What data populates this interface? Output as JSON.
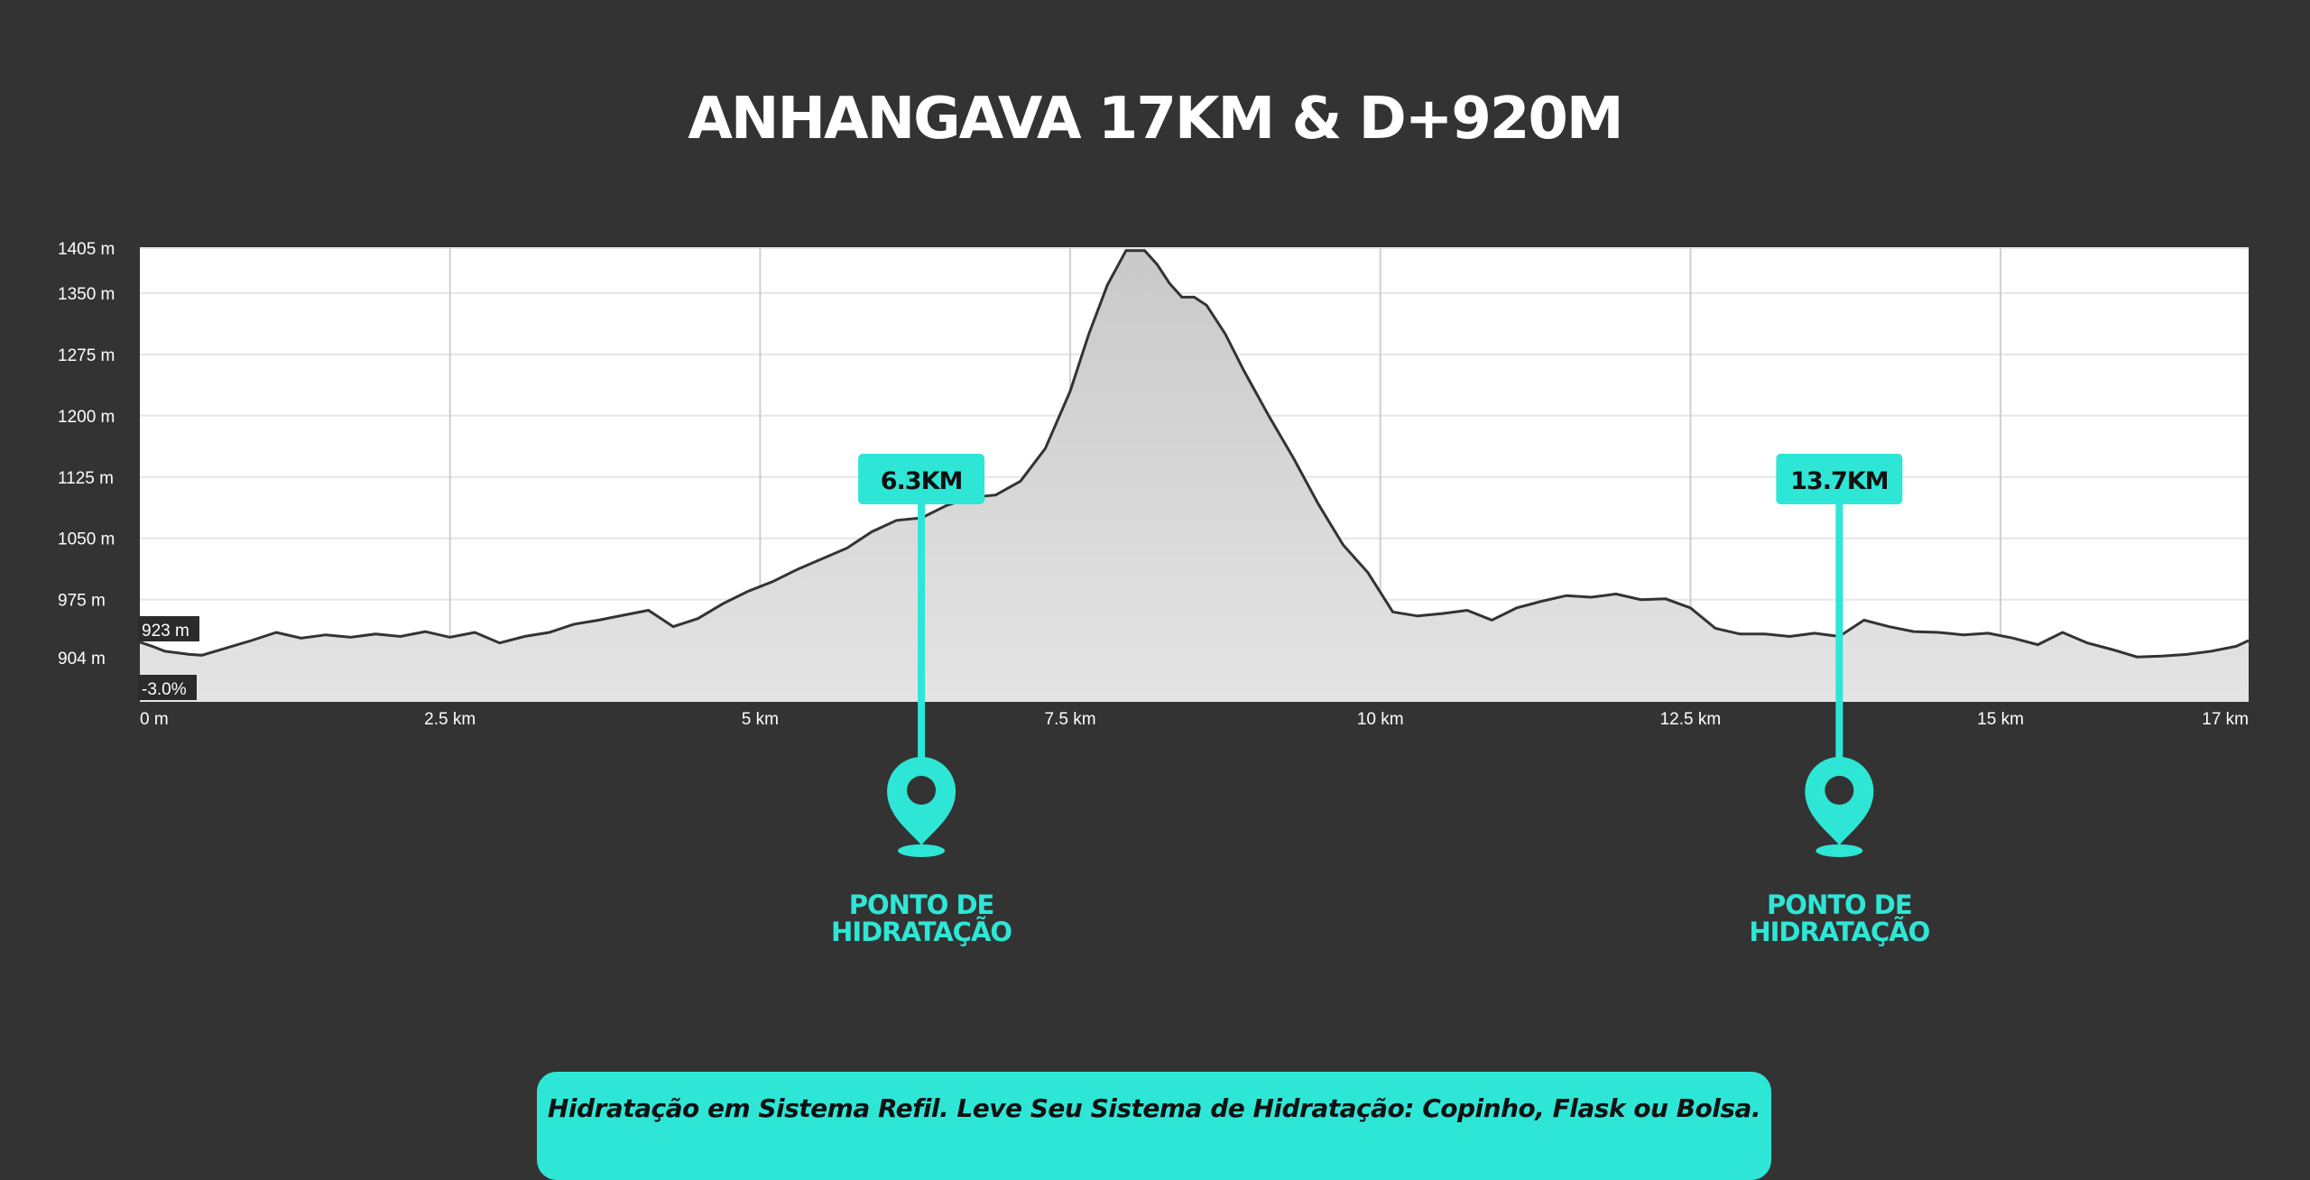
{
  "title": "ANHANGAVA 17KM & D+920M",
  "colors": {
    "background": "#333333",
    "accent": "#2ee6d6",
    "plot_background": "#ffffff",
    "profile_line": "#333333"
  },
  "chart_data": {
    "type": "area",
    "xlabel": "",
    "ylabel": "",
    "xlim": [
      0,
      17
    ],
    "ylim": [
      850,
      1405
    ],
    "grid": true,
    "x_tick_labels": [
      "0 m",
      "2.5 km",
      "5 km",
      "7.5 km",
      "10 km",
      "12.5 km",
      "15 km",
      "17 km"
    ],
    "x_tick_values": [
      0,
      2.5,
      5,
      7.5,
      10,
      12.5,
      15,
      17
    ],
    "y_tick_labels": [
      "1405 m",
      "1350 m",
      "1275 m",
      "1200 m",
      "1125 m",
      "1050 m",
      "975 m",
      "904 m"
    ],
    "y_tick_values": [
      1405,
      1350,
      1275,
      1200,
      1125,
      1050,
      975,
      904
    ],
    "cursor_elevation_label": "923 m",
    "cursor_grade_label": "-3.0%",
    "series": [
      {
        "x": [
          0,
          0.1,
          0.2,
          0.4,
          0.5,
          0.7,
          0.9,
          1.1,
          1.3,
          1.5,
          1.7,
          1.9,
          2.1,
          2.3,
          2.5,
          2.7,
          2.9,
          3.1,
          3.3,
          3.5,
          3.7,
          3.9,
          4.1,
          4.3,
          4.5,
          4.7,
          4.9,
          5.1,
          5.3,
          5.5,
          5.7,
          5.9,
          6.1,
          6.3,
          6.5,
          6.7,
          6.9,
          7.1,
          7.3,
          7.5,
          7.65,
          7.8,
          7.95,
          8.1,
          8.2,
          8.3,
          8.4,
          8.5,
          8.6,
          8.75,
          8.9,
          9.1,
          9.3,
          9.5,
          9.7,
          9.9,
          10.1,
          10.3,
          10.5,
          10.7,
          10.9,
          11.1,
          11.3,
          11.5,
          11.7,
          11.9,
          12.1,
          12.3,
          12.5,
          12.7,
          12.9,
          13.1,
          13.3,
          13.5,
          13.7,
          13.9,
          14.1,
          14.3,
          14.5,
          14.7,
          14.9,
          15.1,
          15.3,
          15.5,
          15.7,
          15.9,
          16.1,
          16.3,
          16.5,
          16.7,
          16.9,
          17
        ],
        "y": [
          923,
          918,
          912,
          908,
          907,
          916,
          925,
          935,
          928,
          932,
          929,
          933,
          930,
          936,
          929,
          935,
          922,
          930,
          935,
          945,
          950,
          956,
          962,
          942,
          952,
          970,
          985,
          997,
          1012,
          1025,
          1038,
          1058,
          1072,
          1075,
          1090,
          1100,
          1103,
          1120,
          1160,
          1230,
          1300,
          1360,
          1402,
          1402,
          1385,
          1362,
          1345,
          1345,
          1335,
          1300,
          1255,
          1200,
          1148,
          1092,
          1042,
          1008,
          960,
          955,
          958,
          962,
          950,
          965,
          973,
          980,
          978,
          982,
          975,
          976,
          965,
          940,
          933,
          933,
          930,
          934,
          930,
          950,
          942,
          936,
          935,
          932,
          934,
          928,
          920,
          935,
          922,
          914,
          905,
          906,
          908,
          912,
          918,
          925
        ]
      }
    ],
    "annotations": [
      {
        "x": 6.3,
        "label": "6.3KM",
        "caption_line1": "PONTO DE",
        "caption_line2": "HIDRATAÇÃO"
      },
      {
        "x": 13.7,
        "label": "13.7KM",
        "caption_line1": "PONTO DE",
        "caption_line2": "HIDRATAÇÃO"
      }
    ]
  },
  "banner": {
    "text": "Hidratação em Sistema Refil. Leve Seu Sistema de Hidratação: Copinho, Flask ou Bolsa."
  }
}
